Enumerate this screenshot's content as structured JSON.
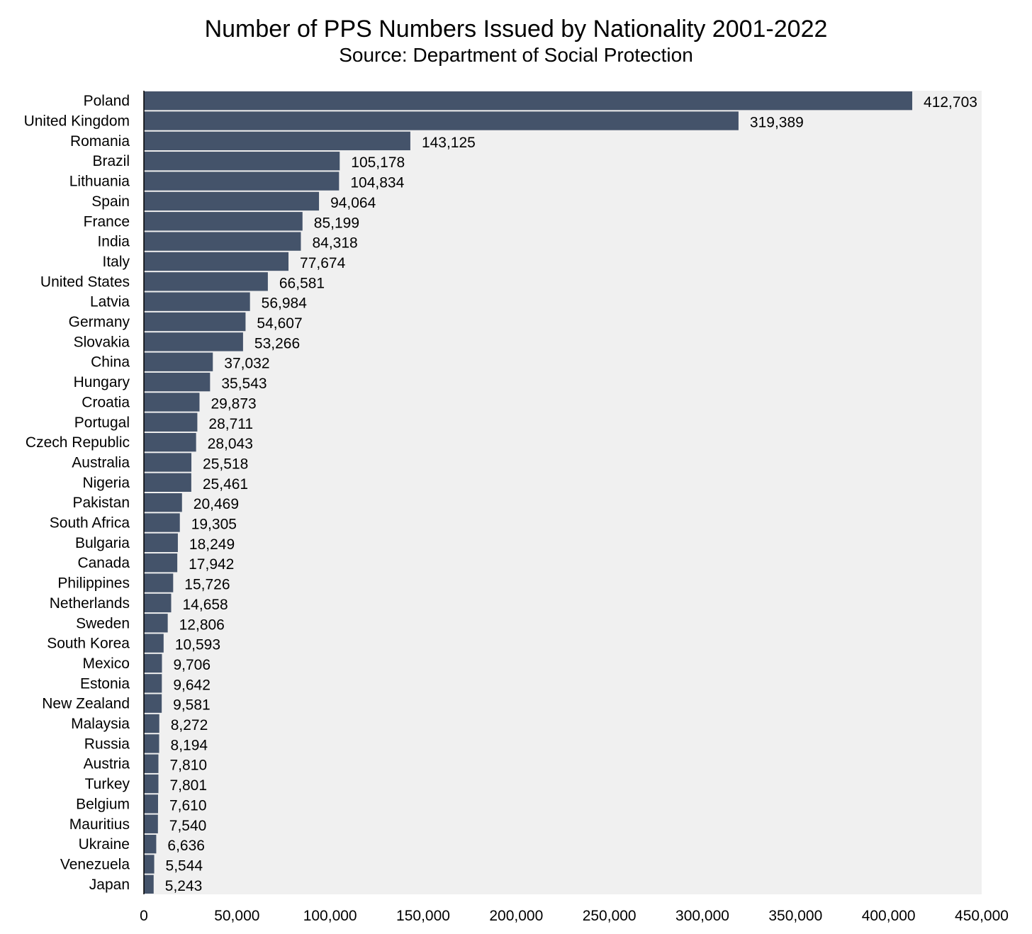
{
  "chart_data": {
    "type": "bar",
    "orientation": "horizontal",
    "title": "Number of PPS Numbers Issued by Nationality 2001-2022",
    "subtitle": "Source: Department of Social Protection",
    "xlabel": "",
    "ylabel": "",
    "xlim": [
      0,
      450000
    ],
    "x_ticks": [
      0,
      50000,
      100000,
      150000,
      200000,
      250000,
      300000,
      350000,
      400000,
      450000
    ],
    "x_tick_labels": [
      "0",
      "50,000",
      "100,000",
      "150,000",
      "200,000",
      "250,000",
      "300,000",
      "350,000",
      "400,000",
      "450,000"
    ],
    "grid": false,
    "legend": "none",
    "colors": {
      "bar": "#44536a",
      "plot_background": "#f0f0f0"
    },
    "categories": [
      "Poland",
      "United Kingdom",
      "Romania",
      "Brazil",
      "Lithuania",
      "Spain",
      "France",
      "India",
      "Italy",
      "United States",
      "Latvia",
      "Germany",
      "Slovakia",
      "China",
      "Hungary",
      "Croatia",
      "Portugal",
      "Czech Republic",
      "Australia",
      "Nigeria",
      "Pakistan",
      "South Africa",
      "Bulgaria",
      "Canada",
      "Philippines",
      "Netherlands",
      "Sweden",
      "South Korea",
      "Mexico",
      "Estonia",
      "New Zealand",
      "Malaysia",
      "Russia",
      "Austria",
      "Turkey",
      "Belgium",
      "Mauritius",
      "Ukraine",
      "Venezuela",
      "Japan"
    ],
    "values": [
      412703,
      319389,
      143125,
      105178,
      104834,
      94064,
      85199,
      84318,
      77674,
      66581,
      56984,
      54607,
      53266,
      37032,
      35543,
      29873,
      28711,
      28043,
      25518,
      25461,
      20469,
      19305,
      18249,
      17942,
      15726,
      14658,
      12806,
      10593,
      9706,
      9642,
      9581,
      8272,
      8194,
      7810,
      7801,
      7610,
      7540,
      6636,
      5544,
      5243
    ],
    "value_labels": [
      "412,703",
      "319,389",
      "143,125",
      "105,178",
      "104,834",
      "94,064",
      "85,199",
      "84,318",
      "77,674",
      "66,581",
      "56,984",
      "54,607",
      "53,266",
      "37,032",
      "35,543",
      "29,873",
      "28,711",
      "28,043",
      "25,518",
      "25,461",
      "20,469",
      "19,305",
      "18,249",
      "17,942",
      "15,726",
      "14,658",
      "12,806",
      "10,593",
      "9,706",
      "9,642",
      "9,581",
      "8,272",
      "8,194",
      "7,810",
      "7,801",
      "7,610",
      "7,540",
      "6,636",
      "5,544",
      "5,243"
    ]
  }
}
